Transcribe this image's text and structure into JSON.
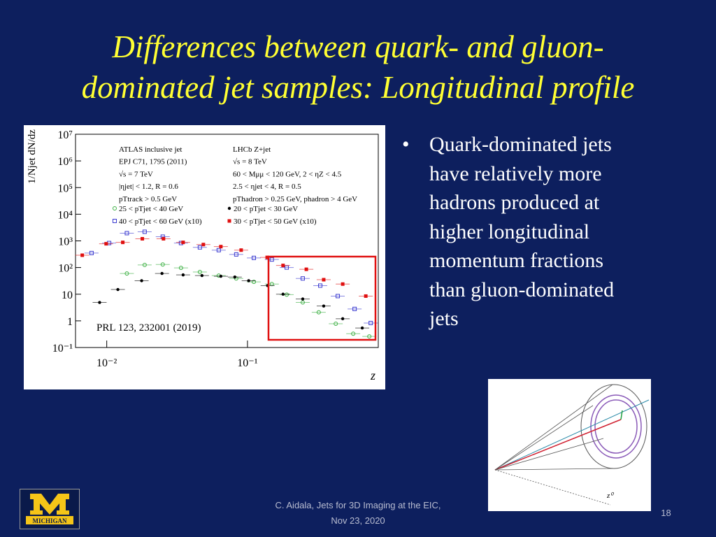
{
  "slide": {
    "title_lines": [
      "Differences between quark- and gluon-",
      "dominated jet samples: Longitudinal profile"
    ],
    "bullet_lines": [
      "Quark-dominated jets",
      "have relatively more",
      "hadrons produced at",
      "higher longitudinal",
      "momentum fractions",
      "than gluon-dominated",
      "jets"
    ],
    "footer_lines": [
      "C. Aidala, Jets for 3D Imaging at the EIC,",
      "Nov 23, 2020"
    ],
    "page_number": "18",
    "logo_text": "MICHIGAN",
    "diagram_label": "z⁰"
  },
  "chart_data": {
    "type": "scatter",
    "x_label": "z",
    "y_label": "1/Njet dN/dz",
    "source_note": "PRL 123, 232001 (2019)",
    "xscale": "log",
    "yscale": "log",
    "xlim": [
      0.006,
      0.85
    ],
    "ylim": [
      0.1,
      10000000
    ],
    "xticks": [
      {
        "value": 0.01,
        "label": "10⁻²"
      },
      {
        "value": 0.1,
        "label": "10⁻¹"
      }
    ],
    "yticks": [
      {
        "value": 10000000,
        "label": "10⁷"
      },
      {
        "value": 1000000,
        "label": "10⁶"
      },
      {
        "value": 100000,
        "label": "10⁵"
      },
      {
        "value": 10000,
        "label": "10⁴"
      },
      {
        "value": 1000,
        "label": "10³"
      },
      {
        "value": 100,
        "label": "10²"
      },
      10,
      1,
      {
        "value": 0.1,
        "label": "10⁻¹"
      }
    ],
    "notes_left": [
      "ATLAS inclusive jet",
      "EPJ C71, 1795 (2011)",
      "√s = 7 TeV",
      "|ηjet| < 1.2, R = 0.6",
      "pTtrack > 0.5 GeV"
    ],
    "notes_right": [
      "LHCb Z+jet",
      "√s = 8 TeV",
      "60 < Mμμ < 120 GeV, 2 < ηZ < 4.5",
      "2.5 < ηjet < 4, R = 0.5",
      "pThadron > 0.25 GeV, phadron > 4 GeV"
    ],
    "series": [
      {
        "name": "25 < pTjet < 40 GeV",
        "color": "#3cb043",
        "marker": "open-circle",
        "x": [
          0.0139,
          0.0186,
          0.025,
          0.0337,
          0.0459,
          0.0625,
          0.0832,
          0.111,
          0.149,
          0.19,
          0.247,
          0.321,
          0.424,
          0.564,
          0.734
        ],
        "values": [
          60,
          125,
          130,
          97,
          68,
          50,
          39,
          29,
          24,
          9.6,
          4.9,
          2.1,
          0.78,
          0.33,
          0.26
        ]
      },
      {
        "name": "40 < pTjet < 60 GeV (x10)",
        "color": "#3a3ad0",
        "marker": "open-square",
        "x": [
          0.0078,
          0.0104,
          0.0139,
          0.0186,
          0.025,
          0.0337,
          0.0459,
          0.0625,
          0.0832,
          0.111,
          0.149,
          0.19,
          0.247,
          0.329,
          0.438,
          0.577,
          0.751
        ],
        "values": [
          350,
          830,
          1950,
          2200,
          1440,
          830,
          570,
          450,
          310,
          230,
          200,
          100,
          39,
          21,
          8.5,
          2.8,
          0.83
        ]
      },
      {
        "name": "20 < pTjet < 30 GeV",
        "color": "#000000",
        "marker": "dot",
        "x": [
          0.0089,
          0.012,
          0.0177,
          0.0247,
          0.0349,
          0.0475,
          0.0647,
          0.0813,
          0.102,
          0.139,
          0.179,
          0.247,
          0.348,
          0.475,
          0.654
        ],
        "values": [
          4.9,
          15,
          32,
          60,
          53,
          50,
          47,
          44,
          32,
          21,
          10,
          6.6,
          3.6,
          1.2,
          0.54
        ]
      },
      {
        "name": "30 < pTjet < 50 GeV (x10)",
        "color": "#e01010",
        "marker": "square",
        "x": [
          0.0067,
          0.0099,
          0.013,
          0.0179,
          0.0253,
          0.0349,
          0.0486,
          0.0647,
          0.0902,
          0.138,
          0.179,
          0.262,
          0.348,
          0.475,
          0.693
        ],
        "values": [
          290,
          780,
          880,
          1200,
          1200,
          880,
          730,
          610,
          450,
          240,
          120,
          86,
          35,
          24,
          8.5
        ]
      }
    ]
  }
}
